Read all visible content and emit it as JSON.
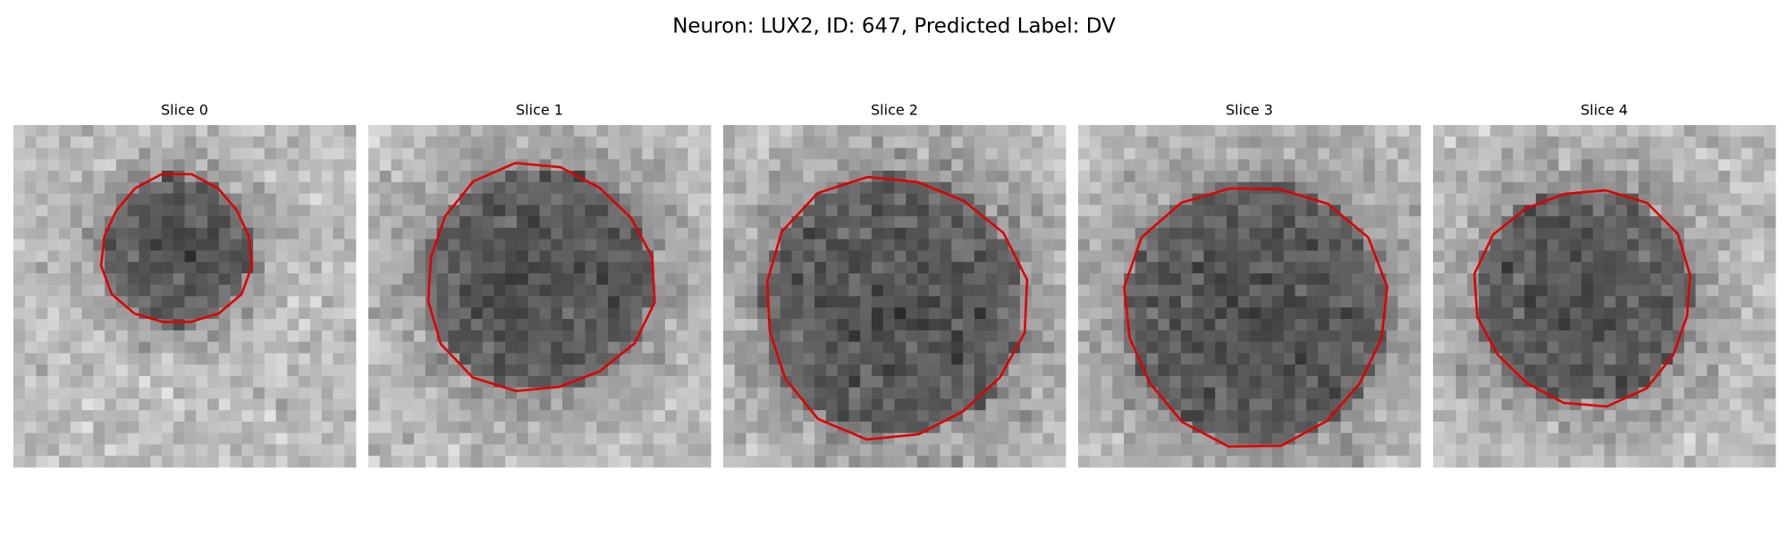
{
  "title": "Neuron: LUX2, ID: 647, Predicted Label: DV",
  "panels": [
    {
      "title": "Slice 0"
    },
    {
      "title": "Slice 1"
    },
    {
      "title": "Slice 2"
    },
    {
      "title": "Slice 3"
    },
    {
      "title": "Slice 4"
    }
  ]
}
